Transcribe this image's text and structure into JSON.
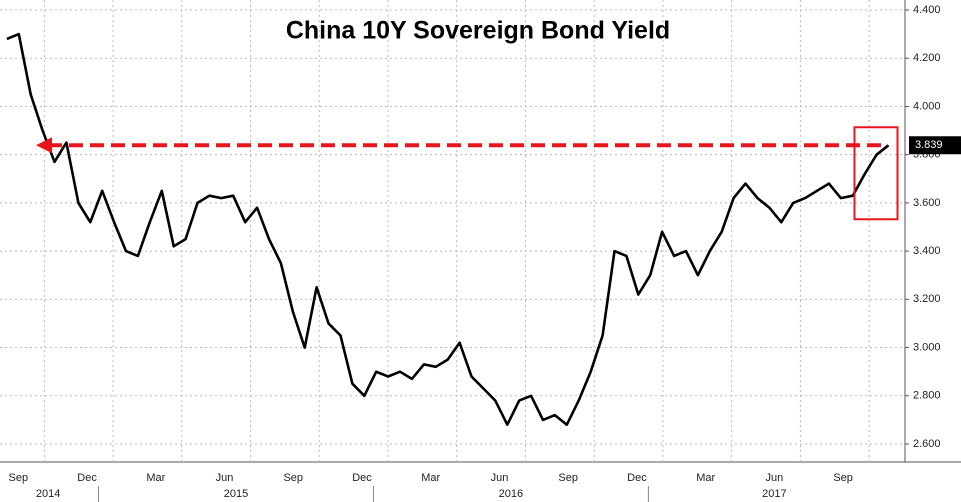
{
  "chart_data": {
    "type": "line",
    "title": "China 10Y Sovereign Bond Yield",
    "series": [
      {
        "name": "China 10Y",
        "color": "#000000",
        "x": [
          0,
          0.52,
          1.04,
          1.56,
          2.08,
          2.6,
          3.12,
          3.64,
          4.16,
          4.68,
          5.2,
          5.72,
          6.24,
          6.76,
          7.28,
          7.8,
          8.32,
          8.84,
          9.36,
          9.88,
          10.4,
          10.92,
          11.44,
          11.96,
          12.48,
          13,
          13.52,
          14.04,
          14.56,
          15.08,
          15.6,
          16.12,
          16.64,
          17.16,
          17.68,
          18.2,
          18.72,
          19.24,
          19.76,
          20.28,
          20.8,
          21.32,
          21.84,
          22.36,
          22.88,
          23.4,
          23.92,
          24.44,
          24.96,
          25.48,
          26,
          26.52,
          27.04,
          27.56,
          28.08,
          28.6,
          29.12,
          29.64,
          30.16,
          30.68,
          31.2,
          31.72,
          32.24,
          32.76,
          33.28,
          33.8,
          34.32,
          34.84,
          35.36,
          35.88,
          36.4,
          36.92,
          37.44,
          37.96,
          38.48
        ],
        "values": [
          4.28,
          4.3,
          4.05,
          3.9,
          3.77,
          3.85,
          3.6,
          3.52,
          3.65,
          3.52,
          3.4,
          3.38,
          3.52,
          3.65,
          3.42,
          3.45,
          3.6,
          3.63,
          3.62,
          3.63,
          3.52,
          3.58,
          3.45,
          3.35,
          3.15,
          3.0,
          3.25,
          3.1,
          3.05,
          2.85,
          2.8,
          2.9,
          2.88,
          2.9,
          2.87,
          2.93,
          2.92,
          2.95,
          3.02,
          2.88,
          2.83,
          2.78,
          2.68,
          2.78,
          2.8,
          2.7,
          2.72,
          2.68,
          2.78,
          2.9,
          3.05,
          3.4,
          3.38,
          3.22,
          3.3,
          3.48,
          3.38,
          3.4,
          3.3,
          3.4,
          3.48,
          3.62,
          3.68,
          3.62,
          3.58,
          3.52,
          3.6,
          3.62,
          3.65,
          3.68,
          3.62,
          3.63,
          3.72,
          3.8,
          3.839
        ]
      }
    ],
    "xlim": [
      -0.3,
      39.2
    ],
    "xticks": [
      {
        "value": 0.5,
        "label": "Sep"
      },
      {
        "value": 3.5,
        "label": "Dec"
      },
      {
        "value": 6.5,
        "label": "Mar"
      },
      {
        "value": 9.5,
        "label": "Jun"
      },
      {
        "value": 12.5,
        "label": "Sep"
      },
      {
        "value": 15.5,
        "label": "Dec"
      },
      {
        "value": 18.5,
        "label": "Mar"
      },
      {
        "value": 21.5,
        "label": "Jun"
      },
      {
        "value": 24.5,
        "label": "Sep"
      },
      {
        "value": 27.5,
        "label": "Dec"
      },
      {
        "value": 30.5,
        "label": "Mar"
      },
      {
        "value": 33.5,
        "label": "Jun"
      },
      {
        "value": 36.5,
        "label": "Sep"
      }
    ],
    "year_labels": [
      {
        "value": 1.8,
        "label": "2014"
      },
      {
        "value": 10,
        "label": "2015"
      },
      {
        "value": 22,
        "label": "2016"
      },
      {
        "value": 33.5,
        "label": "2017"
      }
    ],
    "ylim": [
      2.55,
      4.4
    ],
    "yticks": [
      {
        "value": 2.6,
        "label": "2.600"
      },
      {
        "value": 2.8,
        "label": "2.800"
      },
      {
        "value": 3.0,
        "label": "3.000"
      },
      {
        "value": 3.2,
        "label": "3.200"
      },
      {
        "value": 3.4,
        "label": "3.400"
      },
      {
        "value": 3.6,
        "label": "3.600"
      },
      {
        "value": 3.8,
        "label": "3.800"
      },
      {
        "value": 4.0,
        "label": "4.000"
      },
      {
        "value": 4.2,
        "label": "4.200"
      },
      {
        "value": 4.4,
        "label": "4.400"
      }
    ],
    "grid": true
  }
}
